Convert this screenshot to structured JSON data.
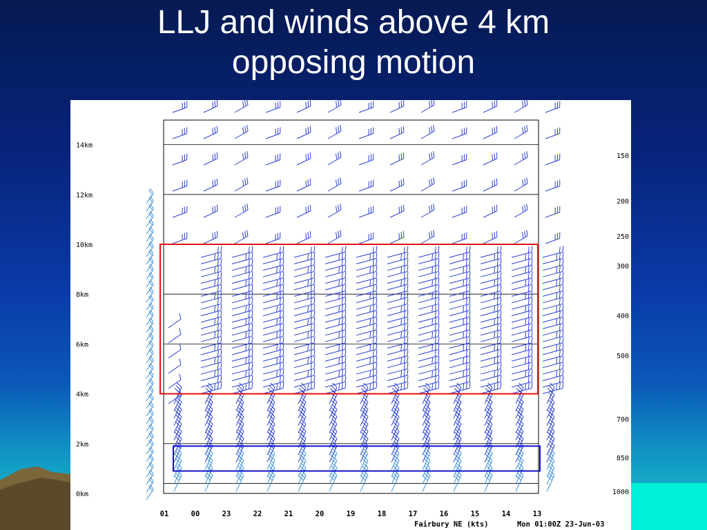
{
  "slide": {
    "title_line1": "LLJ and winds above 4 km",
    "title_line2": "opposing motion"
  },
  "chart_data": {
    "type": "wind-barb time-height section",
    "station_label": "Fairbury NE (kts)",
    "valid_time": "Mon 01:00Z 23-Jun-03",
    "time_labels": [
      "01",
      "00",
      "23",
      "22",
      "21",
      "20",
      "19",
      "18",
      "17",
      "16",
      "15",
      "14",
      "13"
    ],
    "height_labels": [
      "14km",
      "12km",
      "10km",
      "8km",
      "6km",
      "4km",
      "2km",
      "0km"
    ],
    "height_values_km": [
      14,
      12,
      10,
      8,
      6,
      4,
      2,
      0
    ],
    "pressure_labels": [
      "150",
      "200",
      "250",
      "300",
      "400",
      "500",
      "700",
      "850",
      "1000"
    ],
    "pressure_levels_hpa": [
      150,
      200,
      250,
      300,
      400,
      500,
      700,
      850,
      1000
    ],
    "height_range_km": [
      0,
      15.4
    ],
    "reference_lines_km": [
      0.4,
      2,
      6,
      8,
      12,
      14
    ],
    "barb_colors": {
      "profiler": "#2a3fd0",
      "surface_and_tops": "#3a8ed8"
    },
    "highlight_regions": [
      {
        "label": "winds above 4 km",
        "from_km": 4,
        "to_km": 10,
        "color": "#e01010"
      },
      {
        "label": "LLJ",
        "from_km": 0.9,
        "to_km": 1.9,
        "color": "#1010d0"
      }
    ]
  }
}
